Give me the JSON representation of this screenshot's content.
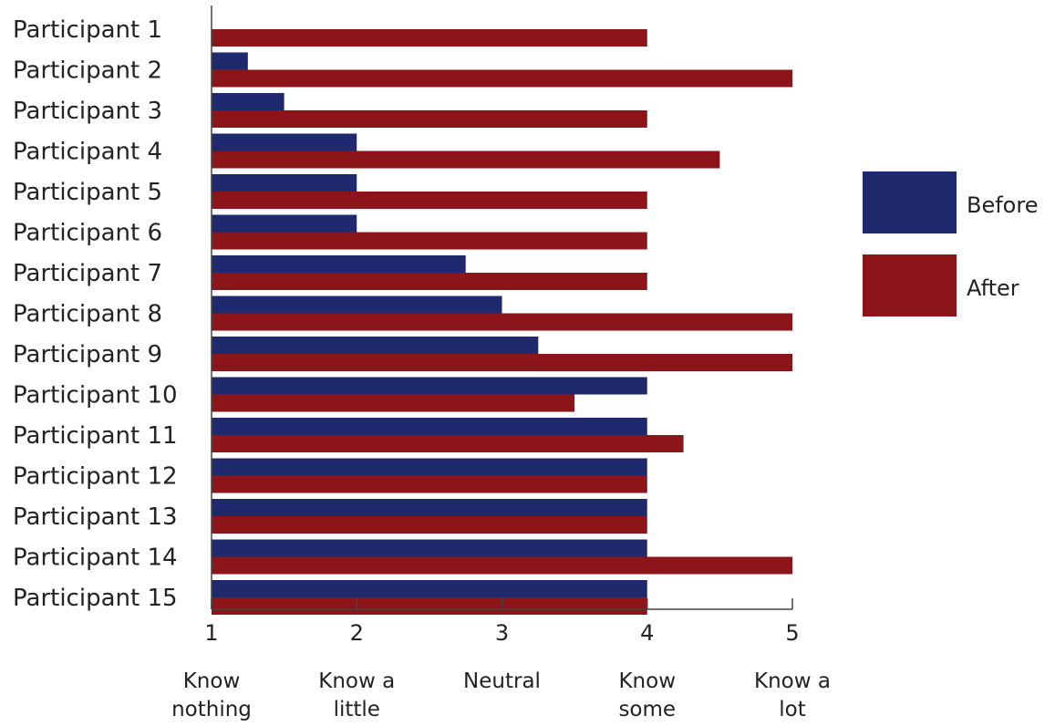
{
  "chart_data": {
    "type": "bar",
    "orientation": "horizontal",
    "categories": [
      "Participant 1",
      "Participant 2",
      "Participant 3",
      "Participant 4",
      "Participant 5",
      "Participant 6",
      "Participant 7",
      "Participant 8",
      "Participant 9",
      "Participant 10",
      "Participant 11",
      "Participant 12",
      "Participant 13",
      "Participant 14",
      "Participant 15"
    ],
    "series": [
      {
        "name": "Before",
        "color": "#1f2a6e",
        "values": [
          1,
          1.25,
          1.5,
          2,
          2,
          2,
          2.75,
          3,
          3.25,
          4,
          4,
          4,
          4,
          4,
          4
        ]
      },
      {
        "name": "After",
        "color": "#8b1518",
        "values": [
          4,
          5,
          4,
          4.5,
          4,
          4,
          4,
          5,
          5,
          3.5,
          4.25,
          4,
          4,
          5,
          4
        ]
      }
    ],
    "xlim": [
      1,
      5
    ],
    "ticks": [
      {
        "value": 1,
        "label": "1",
        "desc": [
          "Know",
          "nothing"
        ]
      },
      {
        "value": 2,
        "label": "2",
        "desc": [
          "Know a",
          "little"
        ]
      },
      {
        "value": 3,
        "label": "3",
        "desc": [
          "Neutral"
        ]
      },
      {
        "value": 4,
        "label": "4",
        "desc": [
          "Know",
          "some"
        ]
      },
      {
        "value": 5,
        "label": "5",
        "desc": [
          "Know a",
          "lot"
        ]
      }
    ],
    "title": "",
    "xlabel": "",
    "ylabel": "",
    "grid": false,
    "legend": "right"
  }
}
